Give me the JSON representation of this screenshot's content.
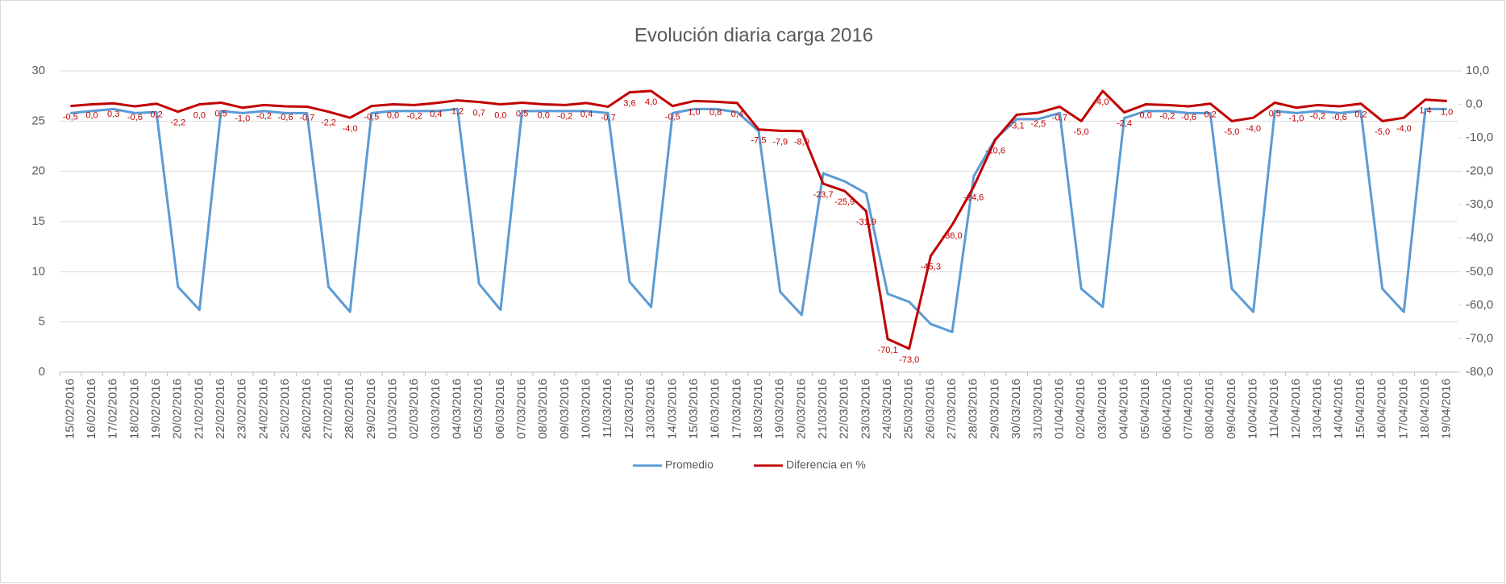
{
  "chart_data": {
    "type": "line",
    "title": "Evolución diaria carga 2016",
    "categories": [
      "15/02/2016",
      "16/02/2016",
      "17/02/2016",
      "18/02/2016",
      "19/02/2016",
      "20/02/2016",
      "21/02/2016",
      "22/02/2016",
      "23/02/2016",
      "24/02/2016",
      "25/02/2016",
      "26/02/2016",
      "27/02/2016",
      "28/02/2016",
      "29/02/2016",
      "01/03/2016",
      "02/03/2016",
      "03/03/2016",
      "04/03/2016",
      "05/03/2016",
      "06/03/2016",
      "07/03/2016",
      "08/03/2016",
      "09/03/2016",
      "10/03/2016",
      "11/03/2016",
      "12/03/2016",
      "13/03/2016",
      "14/03/2016",
      "15/03/2016",
      "16/03/2016",
      "17/03/2016",
      "18/03/2016",
      "19/03/2016",
      "20/03/2016",
      "21/03/2016",
      "22/03/2016",
      "23/03/2016",
      "24/03/2016",
      "25/03/2016",
      "26/03/2016",
      "27/03/2016",
      "28/03/2016",
      "29/03/2016",
      "30/03/2016",
      "31/03/2016",
      "01/04/2016",
      "02/04/2016",
      "03/04/2016",
      "04/04/2016",
      "05/04/2016",
      "06/04/2016",
      "07/04/2016",
      "08/04/2016",
      "09/04/2016",
      "10/04/2016",
      "11/04/2016",
      "12/04/2016",
      "13/04/2016",
      "14/04/2016",
      "15/04/2016",
      "16/04/2016",
      "17/04/2016",
      "18/04/2016",
      "19/04/2016"
    ],
    "series": [
      {
        "name": "Promedio",
        "color": "#5b9bd5",
        "values": [
          25.8,
          26,
          26.2,
          25.8,
          25.9,
          8.5,
          6.2,
          26,
          25.8,
          26,
          25.8,
          25.8,
          8.5,
          6,
          25.8,
          26,
          26,
          26,
          26.2,
          8.8,
          6.2,
          26,
          26,
          26,
          26,
          25.8,
          9,
          6.5,
          25.8,
          26.2,
          26.2,
          25.9,
          24,
          8,
          5.7,
          19.8,
          19,
          17.8,
          7.8,
          7,
          4.8,
          4,
          19.5,
          23.2,
          25.2,
          25.2,
          25.8,
          8.3,
          6.5,
          25.3,
          26,
          26,
          25.8,
          25.8,
          8.3,
          6,
          26,
          25.8,
          26,
          25.8,
          26,
          8.3,
          6,
          26.2,
          26.2
        ]
      },
      {
        "name": "Diferencia en %",
        "color": "#c00000",
        "axis": "y2",
        "values": [
          -0.5,
          0,
          0.3,
          -0.6,
          0.2,
          -2.2,
          0,
          0.5,
          -1,
          -0.2,
          -0.6,
          -0.7,
          -2.2,
          -4,
          -0.5,
          0,
          -0.2,
          0.4,
          1.2,
          0.7,
          0,
          0.5,
          0,
          -0.2,
          0.4,
          -0.7,
          3.6,
          4,
          -0.5,
          1,
          0.8,
          0.4,
          -7.5,
          -7.9,
          -8,
          -23.7,
          -25.9,
          -31.9,
          -70.1,
          -73,
          -45.3,
          -36,
          -24.6,
          -10.6,
          -3.1,
          -2.5,
          -0.7,
          -5,
          4,
          -2.4,
          0,
          -0.2,
          -0.6,
          0.2,
          -5,
          -4,
          0.5,
          -1,
          -0.2,
          -0.6,
          0.2,
          -5,
          -4,
          1.4,
          1
        ],
        "value_labels": [
          "-0,5",
          "0,0",
          "0,3",
          "-0,6",
          "0,2",
          "-2,2",
          "0,0",
          "0,5",
          "-1,0",
          "-0,2",
          "-0,6",
          "-0,7",
          "-2,2",
          "-4,0",
          "-0,5",
          "0,0",
          "-0,2",
          "0,4",
          "1,2",
          "0,7",
          "0,0",
          "0,5",
          "0,0",
          "-0,2",
          "0,4",
          "-0,7",
          "3,6",
          "4,0",
          "-0,5",
          "1,0",
          "0,8",
          "0,4",
          "-7,5",
          "-7,9",
          "-8,0",
          "-23,7",
          "-25,9",
          "-31,9",
          "-70,1",
          "-73,0",
          "-45,3",
          "-36,0",
          "-24,6",
          "-10,6",
          "-3,1",
          "-2,5",
          "-0,7",
          "-5,0",
          "4,0",
          "-2,4",
          "0,0",
          "-0,2",
          "-0,6",
          "0,2",
          "-5,0",
          "-4,0",
          "0,5",
          "-1,0",
          "-0,2",
          "-0,6",
          "0,2",
          "-5,0",
          "-4,0",
          "1,4",
          "1,0"
        ]
      }
    ],
    "ylim": [
      0,
      30
    ],
    "yticks": [
      0,
      5,
      10,
      15,
      20,
      25,
      30
    ],
    "y2lim": [
      -80,
      10
    ],
    "y2ticks": [
      {
        "value": -80,
        "label": "-80,0"
      },
      {
        "value": -70,
        "label": "-70,0"
      },
      {
        "value": -60,
        "label": "-60,0"
      },
      {
        "value": -50,
        "label": "-50,0"
      },
      {
        "value": -40,
        "label": "-40,0"
      },
      {
        "value": -30,
        "label": "-30,0"
      },
      {
        "value": -20,
        "label": "-20,0"
      },
      {
        "value": -10,
        "label": "-10,0"
      },
      {
        "value": 0,
        "label": "0,0"
      },
      {
        "value": 10,
        "label": "10,0"
      }
    ],
    "grid": true,
    "legend": "bottom"
  }
}
